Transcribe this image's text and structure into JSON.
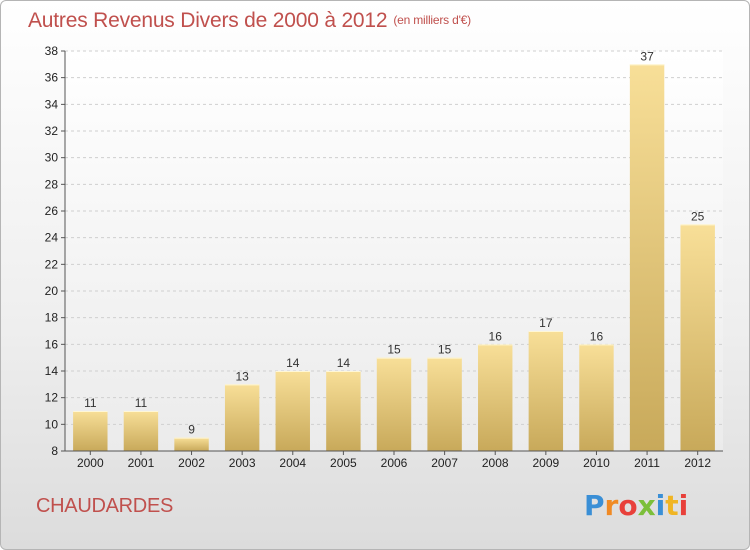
{
  "header": {
    "title": "Autres Revenus Divers de 2000 à 2012",
    "subtitle": "(en milliers d'€)"
  },
  "footer": {
    "commune": "CHAUDARDES",
    "logo_letters": [
      "P",
      "r",
      "o",
      "x",
      "i",
      "t",
      "i"
    ],
    "logo_colors": [
      "#3a8fd6",
      "#f08a24",
      "#e8403a",
      "#7cbf3a",
      "#3a8fd6",
      "#f0b524",
      "#e8403a"
    ]
  },
  "colors": {
    "title": "#c0504d",
    "bar_light": "#f8df98",
    "bar_dark": "#c8a95a"
  },
  "chart_data": {
    "type": "bar",
    "categories": [
      "2000",
      "2001",
      "2002",
      "2003",
      "2004",
      "2005",
      "2006",
      "2007",
      "2008",
      "2009",
      "2010",
      "2011",
      "2012"
    ],
    "values": [
      11,
      11,
      9,
      13,
      14,
      14,
      15,
      15,
      16,
      17,
      16,
      37,
      25
    ],
    "title": "Autres Revenus Divers de 2000 à 2012",
    "xlabel": "",
    "ylabel": "",
    "ylim": [
      8,
      38
    ],
    "yticks": [
      8,
      10,
      12,
      14,
      16,
      18,
      20,
      22,
      24,
      26,
      28,
      30,
      32,
      34,
      36,
      38
    ],
    "grid": true,
    "data_labels": true
  }
}
